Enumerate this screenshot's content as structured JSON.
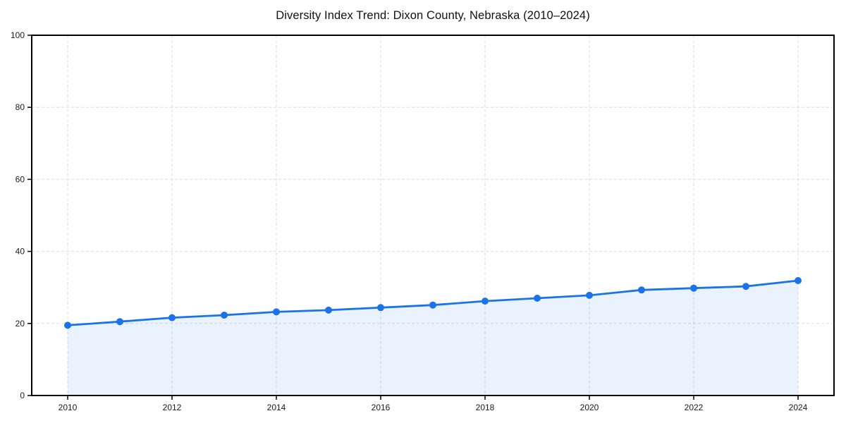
{
  "page": {
    "background": "#ffffff"
  },
  "chart_data": {
    "type": "line",
    "title": "Diversity Index Trend: Dixon County, Nebraska (2010–2024)",
    "x": [
      2010,
      2011,
      2012,
      2013,
      2014,
      2015,
      2016,
      2017,
      2018,
      2019,
      2020,
      2021,
      2022,
      2023,
      2024
    ],
    "series": [
      {
        "name": "Diversity Index",
        "values": [
          19.5,
          20.5,
          21.6,
          22.3,
          23.2,
          23.7,
          24.4,
          25.1,
          26.2,
          27.0,
          27.8,
          29.3,
          29.8,
          30.3,
          31.9
        ]
      }
    ],
    "xlabel": "",
    "ylabel": "",
    "ylim": [
      0,
      100
    ],
    "yticks": [
      0,
      20,
      40,
      60,
      80,
      100
    ],
    "xticks": [
      2010,
      2012,
      2014,
      2016,
      2018,
      2020,
      2022,
      2024
    ],
    "grid": true,
    "grid_style": "dashed",
    "legend_position": "none",
    "marker": "circle",
    "area_fill": true,
    "colors": {
      "line": "#1a73e8",
      "fill": "rgba(26,115,232,0.09)",
      "grid": "#dcdcdc",
      "axis": "#000000",
      "text": "#1a1a1a"
    }
  }
}
